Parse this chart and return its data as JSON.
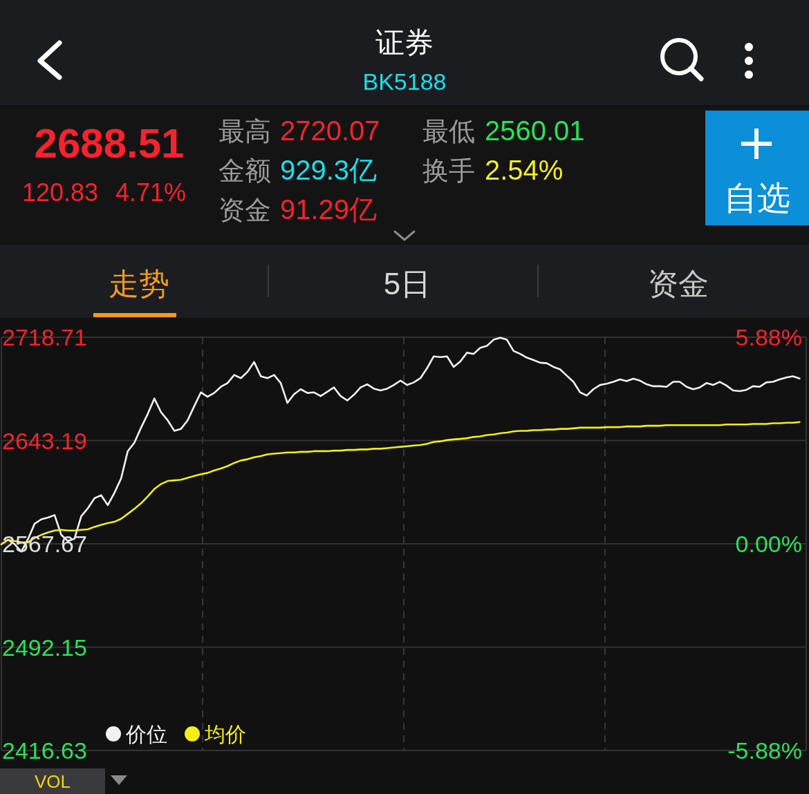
{
  "chart_data": {
    "type": "line",
    "title": "证券",
    "subtitle": "BK5188",
    "categories": [
      null,
      null,
      null,
      null,
      null,
      null,
      null,
      null,
      null,
      null,
      null,
      null,
      null,
      null,
      null,
      null,
      null,
      null,
      null,
      null,
      null,
      null,
      null,
      null,
      null,
      null,
      null,
      null,
      null,
      null,
      null,
      null,
      null,
      null,
      null,
      null,
      null,
      null,
      null,
      null,
      null,
      null,
      null,
      null,
      null,
      null,
      null,
      null,
      null,
      null,
      null,
      null,
      null,
      null,
      null,
      null,
      null,
      null,
      null,
      null,
      null,
      null,
      null,
      null,
      null,
      null,
      null,
      null,
      null,
      null,
      null,
      null,
      null,
      null,
      null,
      null,
      null,
      null,
      null,
      null,
      null,
      null,
      null,
      null,
      null,
      null,
      null,
      null,
      null,
      null,
      null,
      null,
      null,
      null,
      null,
      null,
      null,
      null,
      null,
      null,
      null,
      null,
      null,
      null,
      null,
      null,
      null,
      null,
      null,
      null,
      null,
      null,
      null,
      null,
      null,
      null,
      null,
      null,
      null,
      null,
      null
    ],
    "series": [
      {
        "name": "价位",
        "color": "#f2f2f2",
        "values": [
          2567.4,
          2570.6,
          2567.4,
          2562.0,
          2571.1,
          2582.4,
          2585.6,
          2586.9,
          2588.7,
          2574.2,
          2569.7,
          2571.5,
          2587.8,
          2593.7,
          2601.0,
          2603.2,
          2596.0,
          2605.0,
          2615.5,
          2635.4,
          2641.7,
          2652.6,
          2662.6,
          2673.9,
          2663.9,
          2658.0,
          2650.3,
          2651.7,
          2658.0,
          2668.4,
          2678.4,
          2675.2,
          2678.0,
          2682.5,
          2685.2,
          2691.1,
          2688.8,
          2693.4,
          2700.6,
          2690.2,
          2688.8,
          2691.1,
          2685.2,
          2670.7,
          2677.0,
          2680.7,
          2678.0,
          2678.4,
          2675.7,
          2678.9,
          2682.0,
          2675.7,
          2672.5,
          2676.6,
          2682.0,
          2684.3,
          2681.1,
          2679.8,
          2681.1,
          2683.8,
          2687.0,
          2683.8,
          2685.7,
          2688.8,
          2696.1,
          2704.7,
          2704.2,
          2704.7,
          2697.0,
          2701.0,
          2707.4,
          2706.5,
          2711.0,
          2712.4,
          2716.9,
          2718.3,
          2716.9,
          2708.7,
          2706.5,
          2703.8,
          2702.0,
          2700.1,
          2699.7,
          2697.0,
          2695.2,
          2690.6,
          2686.1,
          2678.4,
          2676.1,
          2680.7,
          2683.8,
          2684.7,
          2686.1,
          2687.9,
          2686.6,
          2688.4,
          2687.0,
          2684.3,
          2682.9,
          2682.9,
          2682.5,
          2686.1,
          2686.1,
          2682.5,
          2680.7,
          2682.0,
          2685.2,
          2683.8,
          2686.1,
          2683.4,
          2679.8,
          2679.3,
          2680.2,
          2682.9,
          2682.5,
          2685.7,
          2686.1,
          2687.9,
          2689.3,
          2690.2,
          2688.5
        ]
      },
      {
        "name": "均价",
        "color": "#f5ee12",
        "values": [
          2567.4,
          2570.6,
          2569.7,
          2568.8,
          2568.8,
          2572.0,
          2574.2,
          2576.0,
          2577.4,
          2577.9,
          2577.4,
          2577.4,
          2577.9,
          2578.3,
          2580.1,
          2581.5,
          2582.8,
          2583.8,
          2586.0,
          2589.6,
          2593.3,
          2597.3,
          2602.3,
          2607.8,
          2611.4,
          2613.6,
          2614.1,
          2614.5,
          2615.9,
          2617.3,
          2618.6,
          2619.5,
          2621.3,
          2622.7,
          2624.5,
          2626.8,
          2628.6,
          2629.5,
          2630.9,
          2631.8,
          2633.1,
          2633.6,
          2634.0,
          2634.5,
          2634.5,
          2634.9,
          2634.9,
          2635.4,
          2635.4,
          2635.4,
          2635.8,
          2635.8,
          2636.3,
          2636.3,
          2636.7,
          2636.7,
          2637.2,
          2637.2,
          2637.6,
          2638.1,
          2638.6,
          2639.0,
          2639.5,
          2639.9,
          2640.8,
          2642.2,
          2642.6,
          2643.5,
          2644.0,
          2644.4,
          2644.9,
          2645.8,
          2646.2,
          2647.2,
          2647.6,
          2648.5,
          2649.0,
          2649.9,
          2650.3,
          2650.3,
          2650.8,
          2650.8,
          2651.2,
          2651.2,
          2651.7,
          2651.7,
          2652.1,
          2652.6,
          2652.6,
          2652.6,
          2652.6,
          2653.0,
          2653.0,
          2653.0,
          2653.5,
          2653.5,
          2653.5,
          2654.0,
          2654.0,
          2654.0,
          2654.4,
          2654.4,
          2654.4,
          2654.4,
          2654.4,
          2654.4,
          2654.4,
          2654.4,
          2654.4,
          2654.9,
          2654.9,
          2654.9,
          2654.9,
          2655.3,
          2655.3,
          2655.3,
          2655.8,
          2655.8,
          2656.2,
          2656.2,
          2656.7
        ]
      }
    ],
    "ylim": [
      2416.63,
      2718.71
    ],
    "yticks": [
      2416.63,
      2492.15,
      2567.67,
      2643.19,
      2718.71
    ],
    "y2lim": [
      -5.88,
      5.88
    ],
    "y2ticks": [
      {
        "value": -5.88,
        "label": "-5.88%"
      },
      {
        "value": 0,
        "label": "0.00%"
      },
      {
        "value": 5.88,
        "label": "5.88%"
      }
    ],
    "grid": true,
    "legend": "bottom left",
    "annotations": [
      "2688.51",
      "120.83",
      "4.71%",
      "最高",
      "2720.07",
      "最低",
      "2560.01",
      "金额",
      "929.3亿",
      "换手",
      "2.54%",
      "资金",
      "91.29亿",
      "自选",
      "走势",
      "5日",
      "资金",
      "VOL"
    ]
  }
}
